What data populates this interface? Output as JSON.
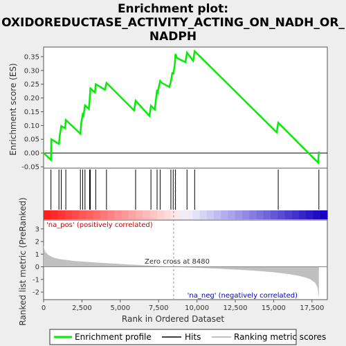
{
  "title_lines": [
    "Enrichment plot:",
    "OXIDOREDUCTASE_ACTIVITY_ACTING_ON_NADH_OR_",
    "NADPH"
  ],
  "top_ylabel": "Enrichment score (ES)",
  "bottom_ylabel": "Ranked list metric (PreRanked)",
  "xlabel": "Rank in Ordered Dataset",
  "pos_label": "'na_pos' (positively correlated)",
  "neg_label": "'na_neg' (negatively correlated)",
  "zero_cross_label": "Zero cross at 8480",
  "legend": {
    "profile": "Enrichment profile",
    "hits": "Hits",
    "metric": "Ranking metric scores"
  },
  "colors": {
    "profile": "#00ee00",
    "hits": "#000000",
    "metric": "#c0c0c0",
    "background": "#eeeeee",
    "plot_bg": "#ffffff"
  },
  "chart_data": [
    {
      "type": "line",
      "name": "enrichment-profile",
      "x_range": [
        0,
        18500
      ],
      "ylim": [
        -0.055,
        0.385
      ],
      "y_ticks": [
        -0.05,
        0.0,
        0.05,
        0.1,
        0.15,
        0.2,
        0.25,
        0.3,
        0.35
      ],
      "y_tick_labels": [
        "-0.05",
        "0.00",
        "0.05",
        "0.10",
        "0.15",
        "0.20",
        "0.25",
        "0.30",
        "0.35"
      ],
      "x": [
        0,
        480,
        500,
        1000,
        1050,
        1150,
        1400,
        1450,
        2400,
        2450,
        2550,
        2600,
        2700,
        2950,
        3000,
        3050,
        3350,
        3400,
        4000,
        4100,
        5900,
        6000,
        6900,
        7000,
        7250,
        7400,
        7450,
        7600,
        7700,
        8200,
        8300,
        8400,
        8450,
        8550,
        8600,
        8700,
        9250,
        9350,
        9750,
        9850,
        15200,
        15300,
        17900,
        17950
      ],
      "y": [
        0.0,
        -0.025,
        0.05,
        0.033,
        0.062,
        0.098,
        0.09,
        0.12,
        0.07,
        0.108,
        0.14,
        0.135,
        0.173,
        0.16,
        0.19,
        0.235,
        0.22,
        0.25,
        0.23,
        0.255,
        0.155,
        0.19,
        0.135,
        0.172,
        0.158,
        0.23,
        0.222,
        0.262,
        0.255,
        0.24,
        0.26,
        0.293,
        0.285,
        0.32,
        0.36,
        0.345,
        0.33,
        0.365,
        0.335,
        0.37,
        0.075,
        0.11,
        -0.035,
        0.005
      ]
    },
    {
      "type": "hits",
      "name": "hits",
      "positions": [
        480,
        1000,
        1150,
        1450,
        2400,
        2550,
        2700,
        3000,
        3050,
        3400,
        4100,
        6000,
        7000,
        7400,
        7600,
        8300,
        8450,
        8600,
        9350,
        9850,
        15300,
        17950
      ]
    },
    {
      "type": "area",
      "name": "ranked-list-metric",
      "x_range": [
        0,
        18500
      ],
      "ylim": [
        -2.6,
        3.7
      ],
      "y_ticks": [
        -2,
        -1,
        0,
        1,
        2,
        3
      ],
      "y_tick_labels": [
        "-2",
        "-1",
        "0",
        "1",
        "2",
        "3"
      ],
      "x_ticks": [
        0,
        2500,
        5000,
        7500,
        10000,
        12500,
        15000,
        17500
      ],
      "x_tick_labels": [
        "0",
        "2,500",
        "5,000",
        "7,500",
        "10,000",
        "12,500",
        "15,000",
        "17,500"
      ],
      "x": [
        0,
        100,
        300,
        600,
        1000,
        2000,
        3000,
        4000,
        5000,
        6000,
        7000,
        8000,
        8480,
        9000,
        10000,
        11000,
        12000,
        13000,
        14000,
        15000,
        16000,
        16500,
        17000,
        17400,
        17700,
        17850,
        17950
      ],
      "y": [
        1.7,
        1.2,
        0.95,
        0.75,
        0.62,
        0.46,
        0.37,
        0.3,
        0.22,
        0.15,
        0.09,
        0.03,
        0.0,
        -0.03,
        -0.08,
        -0.13,
        -0.19,
        -0.25,
        -0.33,
        -0.43,
        -0.58,
        -0.68,
        -0.82,
        -1.0,
        -1.25,
        -1.6,
        -2.4
      ],
      "zero_cross": 8480
    }
  ]
}
